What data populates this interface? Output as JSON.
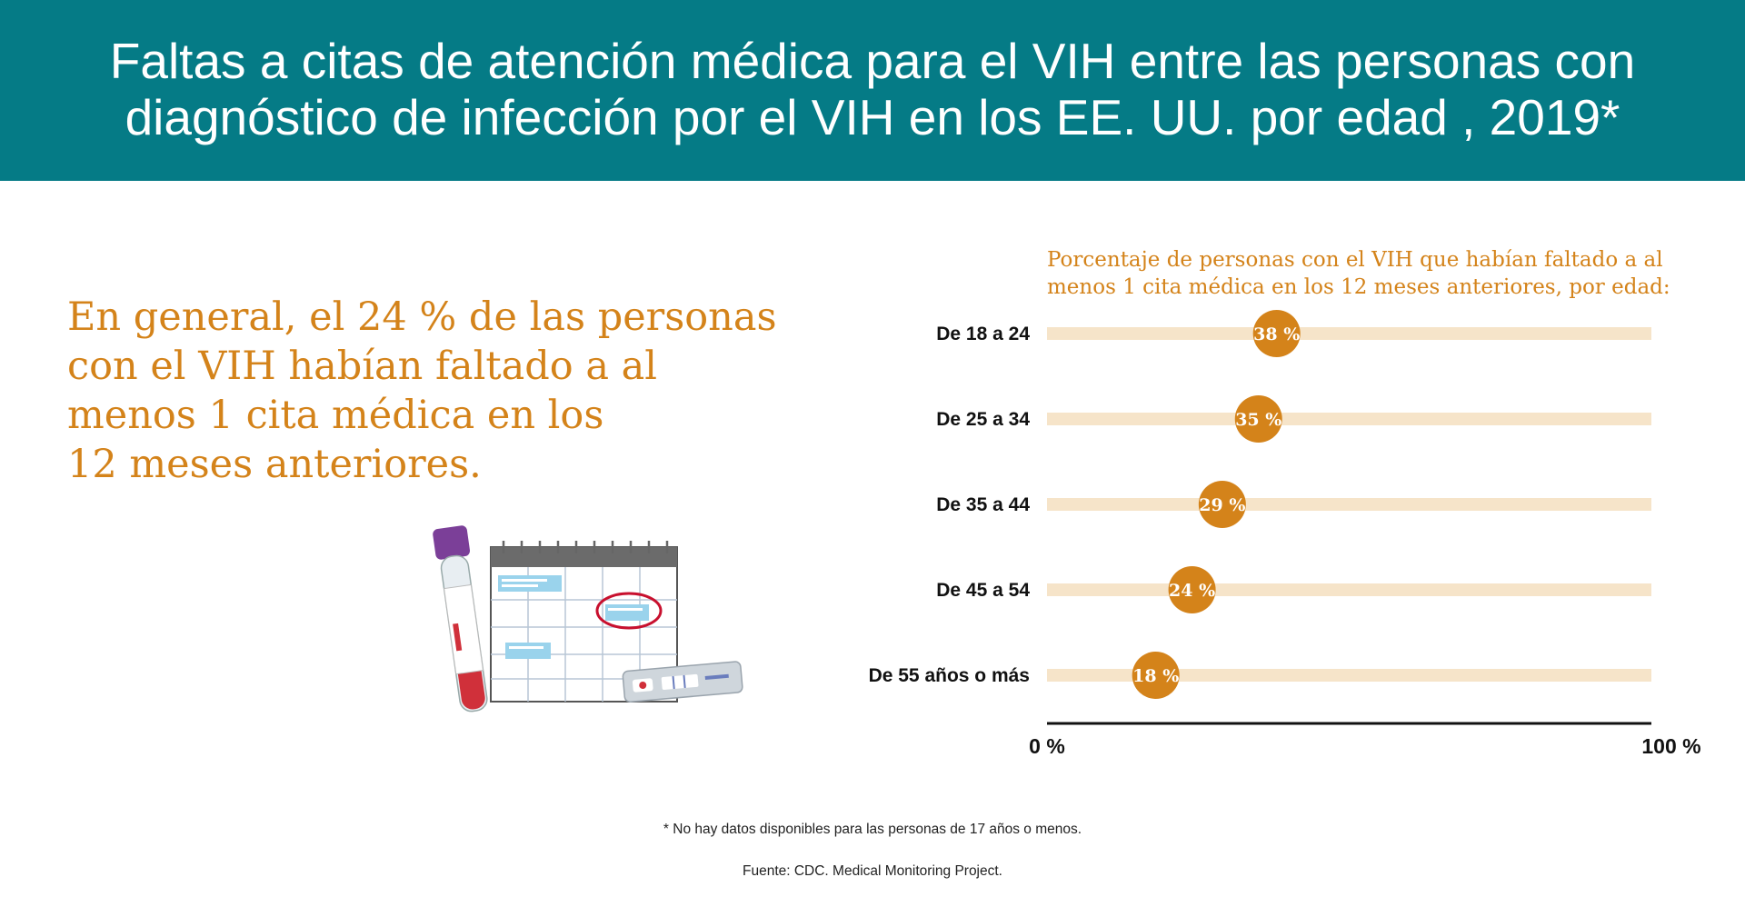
{
  "header": {
    "title": "Faltas a citas de atención médica para el VIH entre las personas con\ndiagnóstico de infección por el VIH en los EE. UU. por edad , 2019*"
  },
  "headline": "En general, el 24 % de las personas\ncon el VIH habían faltado a al\nmenos 1 cita médica en los\n12 meses anteriores.",
  "colors": {
    "banner": "#057b86",
    "accent": "#d4831a",
    "track": "#f6e4c9",
    "dot": "#d4831a"
  },
  "illustration": {
    "items": [
      "blood-tube-icon",
      "calendar-icon",
      "hiv-test-kit-icon"
    ]
  },
  "chart_data": {
    "type": "dot",
    "title": "Porcentaje de personas con el VIH que habían faltado a al\nmenos 1 cita médica en los 12 meses anteriores, por edad:",
    "categories": [
      "De 18 a 24",
      "De 25 a 34",
      "De 35 a 44",
      "De 45 a 54",
      "De 55 años o más"
    ],
    "values": [
      38,
      35,
      29,
      24,
      18
    ],
    "value_labels": [
      "38 %",
      "35 %",
      "29 %",
      "24 %",
      "18 %"
    ],
    "xlim": [
      0,
      100
    ],
    "x_tick_labels": [
      "0 %",
      "100 %"
    ],
    "grid": false
  },
  "footnote": "* No hay datos disponibles para las personas de 17 años o menos.",
  "source": "Fuente: CDC. Medical Monitoring Project."
}
